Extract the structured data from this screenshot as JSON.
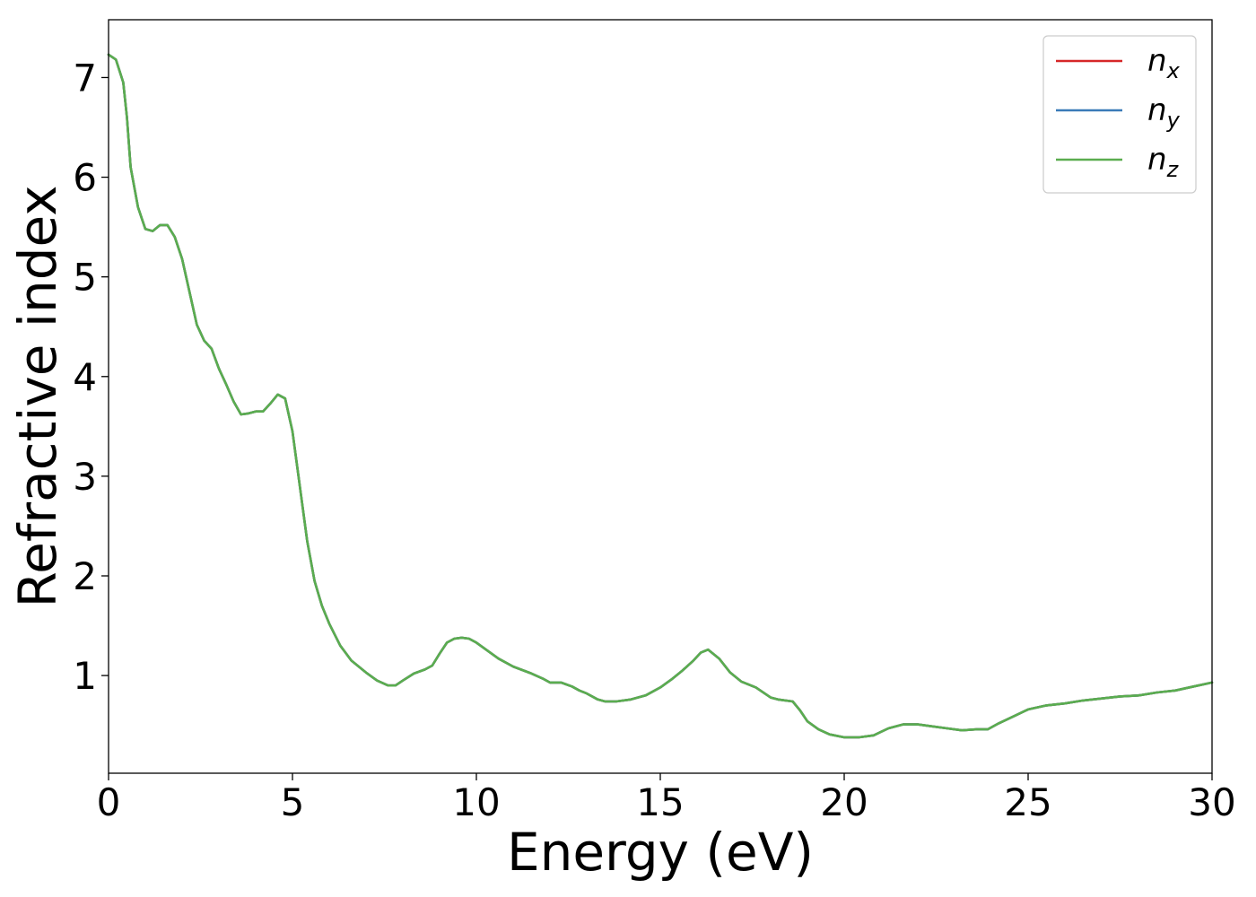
{
  "chart_data": {
    "type": "line",
    "title": "",
    "xlabel": "Energy (eV)",
    "ylabel": "Refractive index",
    "xlim": [
      0,
      30
    ],
    "ylim": [
      0.02,
      7.58
    ],
    "xticks": [
      0,
      5,
      10,
      15,
      20,
      25,
      30
    ],
    "yticks": [
      1,
      2,
      3,
      4,
      5,
      6,
      7
    ],
    "grid": false,
    "legend_position": "top-right",
    "series": [
      {
        "name": "n",
        "sub": "x",
        "color": "#d62728",
        "points": "shared"
      },
      {
        "name": "n",
        "sub": "y",
        "color": "#3a7bb8",
        "points": "shared"
      },
      {
        "name": "n",
        "sub": "z",
        "color": "#5aad4f",
        "points": "shared"
      }
    ],
    "points": [
      [
        0.0,
        7.23
      ],
      [
        0.2,
        7.18
      ],
      [
        0.4,
        6.95
      ],
      [
        0.5,
        6.6
      ],
      [
        0.6,
        6.1
      ],
      [
        0.8,
        5.7
      ],
      [
        1.0,
        5.48
      ],
      [
        1.2,
        5.46
      ],
      [
        1.4,
        5.52
      ],
      [
        1.6,
        5.52
      ],
      [
        1.8,
        5.4
      ],
      [
        2.0,
        5.18
      ],
      [
        2.2,
        4.85
      ],
      [
        2.4,
        4.52
      ],
      [
        2.6,
        4.36
      ],
      [
        2.8,
        4.28
      ],
      [
        3.0,
        4.08
      ],
      [
        3.2,
        3.92
      ],
      [
        3.4,
        3.75
      ],
      [
        3.6,
        3.62
      ],
      [
        3.8,
        3.63
      ],
      [
        4.0,
        3.65
      ],
      [
        4.2,
        3.65
      ],
      [
        4.4,
        3.73
      ],
      [
        4.6,
        3.82
      ],
      [
        4.8,
        3.78
      ],
      [
        5.0,
        3.45
      ],
      [
        5.2,
        2.9
      ],
      [
        5.4,
        2.35
      ],
      [
        5.6,
        1.95
      ],
      [
        5.8,
        1.7
      ],
      [
        6.0,
        1.52
      ],
      [
        6.3,
        1.3
      ],
      [
        6.6,
        1.15
      ],
      [
        7.0,
        1.03
      ],
      [
        7.3,
        0.95
      ],
      [
        7.6,
        0.9
      ],
      [
        7.8,
        0.9
      ],
      [
        8.0,
        0.95
      ],
      [
        8.3,
        1.02
      ],
      [
        8.6,
        1.06
      ],
      [
        8.8,
        1.1
      ],
      [
        9.0,
        1.22
      ],
      [
        9.2,
        1.33
      ],
      [
        9.4,
        1.37
      ],
      [
        9.6,
        1.38
      ],
      [
        9.8,
        1.37
      ],
      [
        10.0,
        1.33
      ],
      [
        10.3,
        1.25
      ],
      [
        10.6,
        1.17
      ],
      [
        11.0,
        1.09
      ],
      [
        11.5,
        1.02
      ],
      [
        11.8,
        0.97
      ],
      [
        12.0,
        0.93
      ],
      [
        12.3,
        0.93
      ],
      [
        12.6,
        0.89
      ],
      [
        12.8,
        0.85
      ],
      [
        13.0,
        0.82
      ],
      [
        13.3,
        0.76
      ],
      [
        13.5,
        0.74
      ],
      [
        13.8,
        0.74
      ],
      [
        14.2,
        0.76
      ],
      [
        14.6,
        0.8
      ],
      [
        15.0,
        0.88
      ],
      [
        15.3,
        0.96
      ],
      [
        15.6,
        1.05
      ],
      [
        15.9,
        1.15
      ],
      [
        16.1,
        1.23
      ],
      [
        16.3,
        1.26
      ],
      [
        16.6,
        1.17
      ],
      [
        16.9,
        1.03
      ],
      [
        17.2,
        0.94
      ],
      [
        17.6,
        0.88
      ],
      [
        18.0,
        0.78
      ],
      [
        18.2,
        0.76
      ],
      [
        18.6,
        0.74
      ],
      [
        18.8,
        0.65
      ],
      [
        19.0,
        0.54
      ],
      [
        19.3,
        0.46
      ],
      [
        19.6,
        0.41
      ],
      [
        20.0,
        0.38
      ],
      [
        20.4,
        0.38
      ],
      [
        20.8,
        0.4
      ],
      [
        21.2,
        0.47
      ],
      [
        21.6,
        0.51
      ],
      [
        22.0,
        0.51
      ],
      [
        22.4,
        0.49
      ],
      [
        22.8,
        0.47
      ],
      [
        23.2,
        0.45
      ],
      [
        23.6,
        0.46
      ],
      [
        23.9,
        0.46
      ],
      [
        24.2,
        0.52
      ],
      [
        24.6,
        0.59
      ],
      [
        25.0,
        0.66
      ],
      [
        25.5,
        0.7
      ],
      [
        26.0,
        0.72
      ],
      [
        26.5,
        0.75
      ],
      [
        27.0,
        0.77
      ],
      [
        27.5,
        0.79
      ],
      [
        28.0,
        0.8
      ],
      [
        28.5,
        0.83
      ],
      [
        29.0,
        0.85
      ],
      [
        29.5,
        0.89
      ],
      [
        30.0,
        0.93
      ]
    ]
  }
}
